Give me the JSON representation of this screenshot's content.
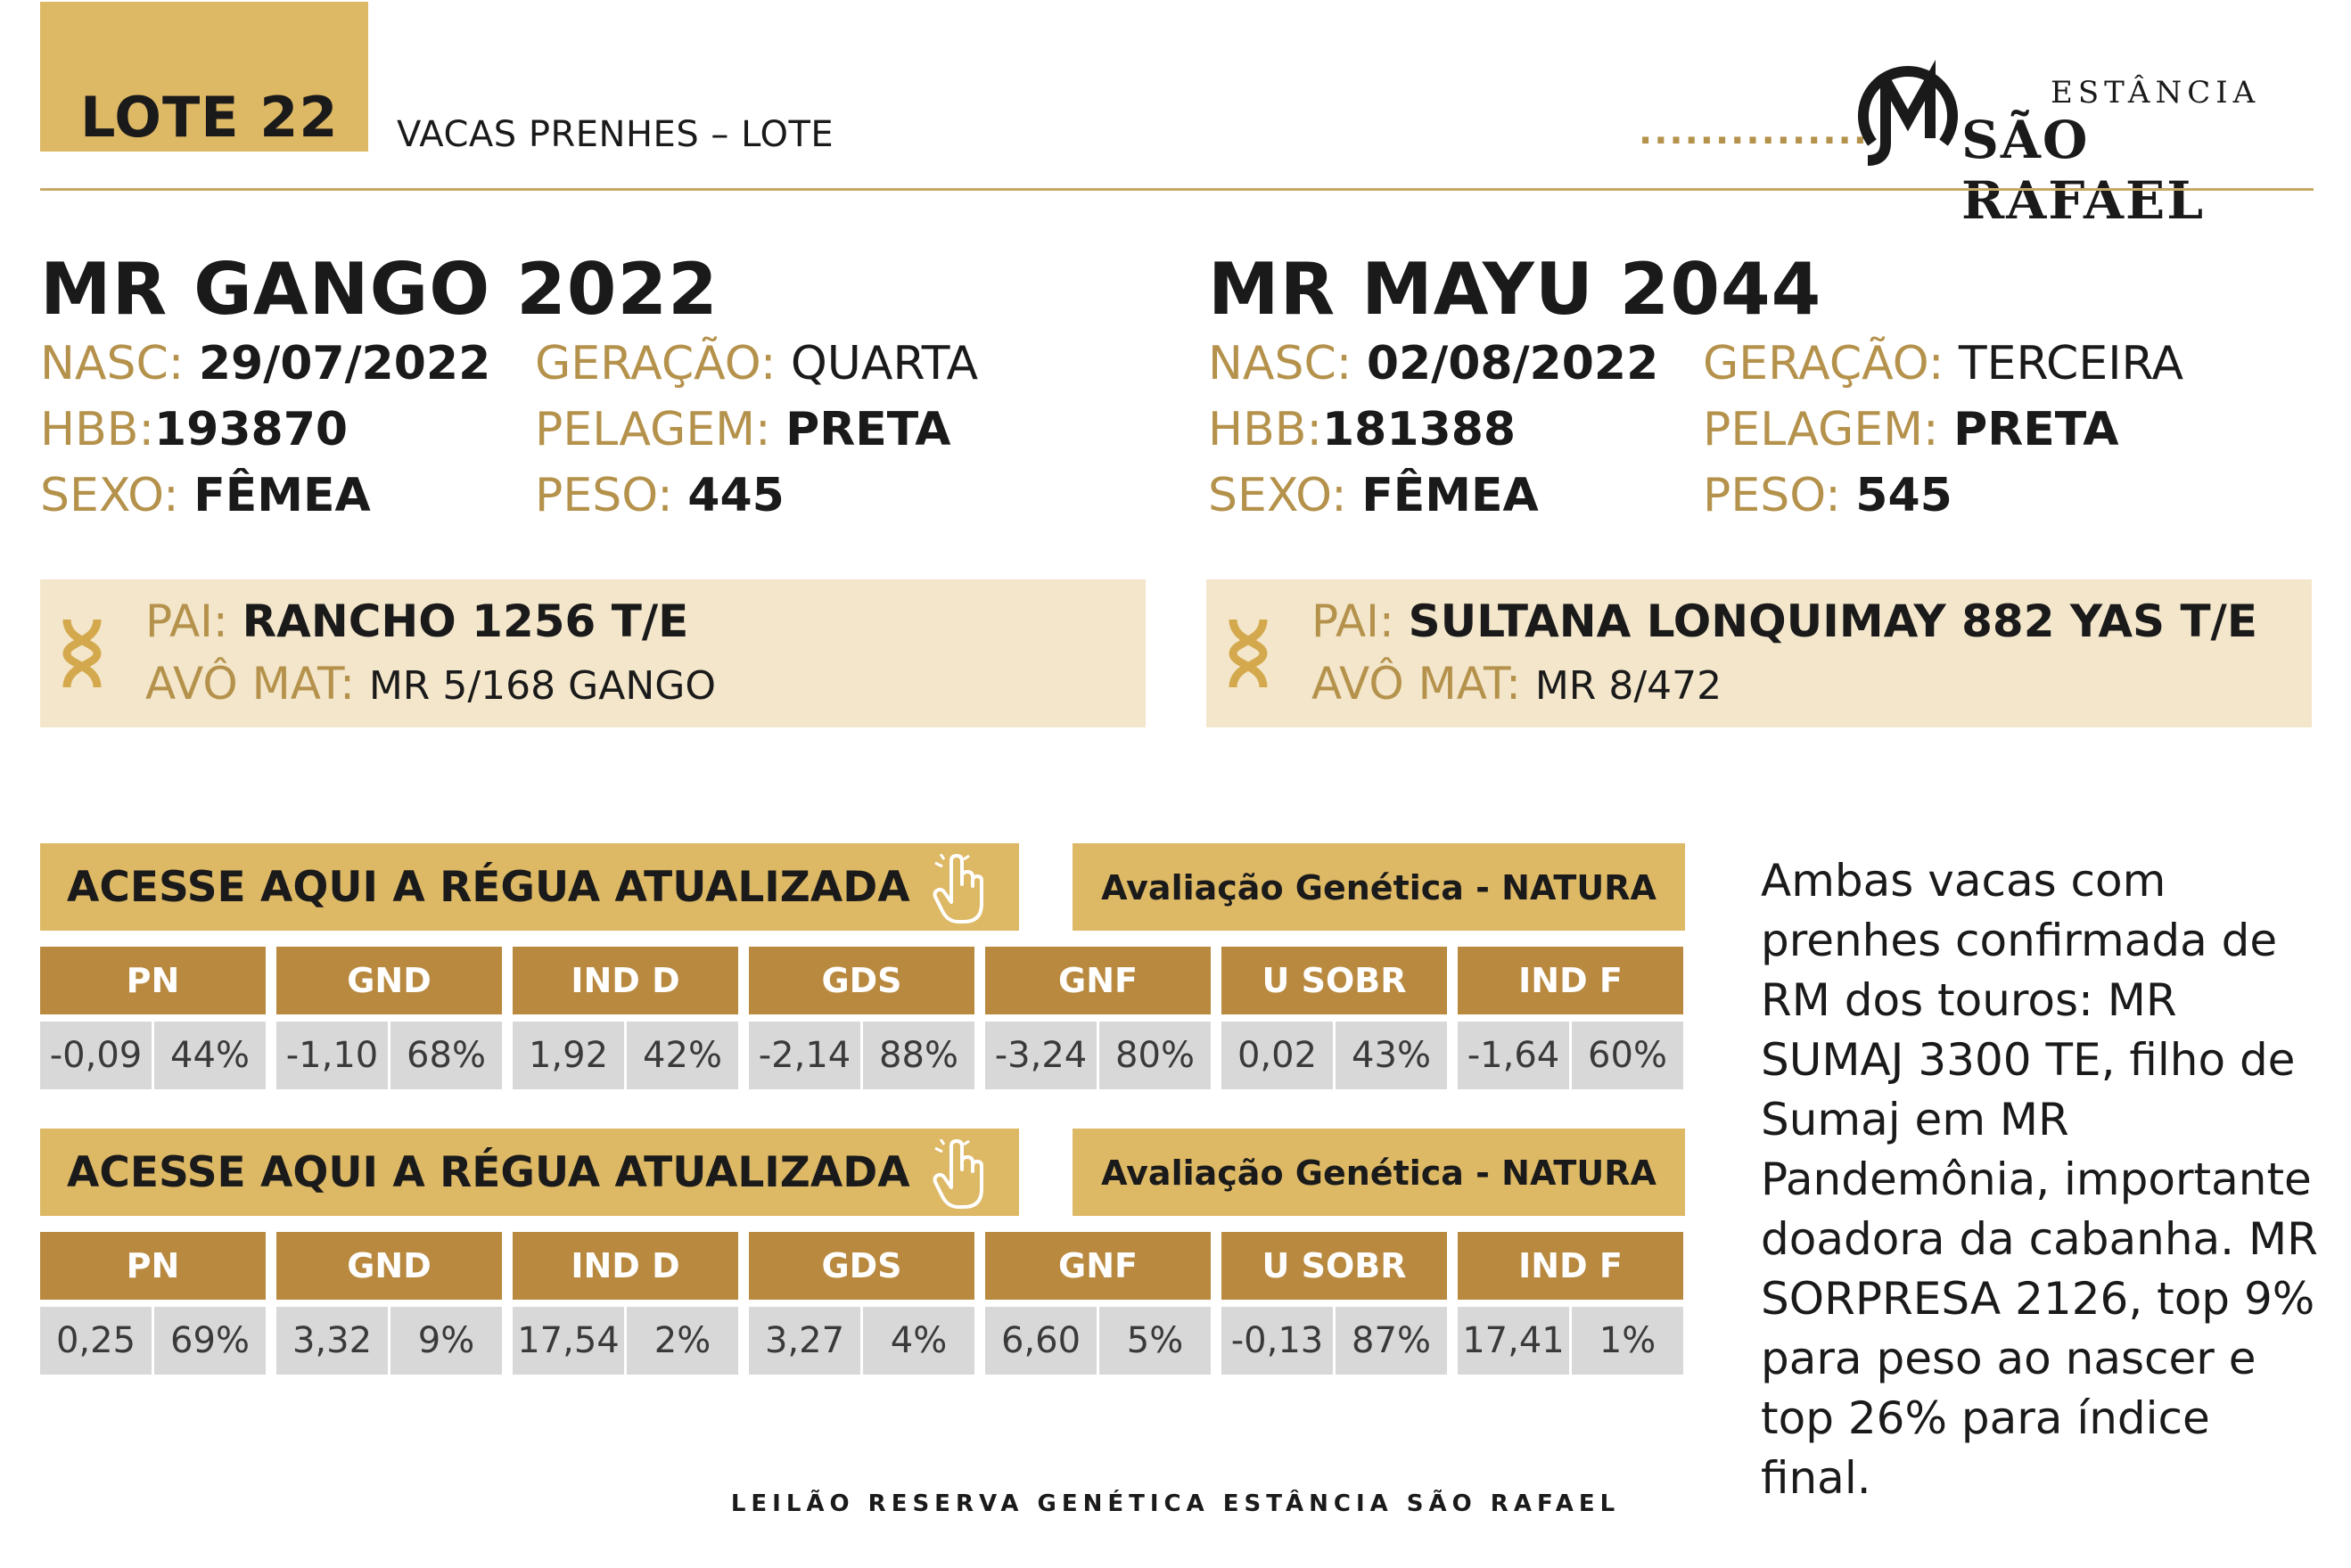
{
  "header": {
    "lote": "LOTE 22",
    "subtitle": "VACAS PRENHES – LOTE",
    "dots": "...............",
    "logo": {
      "estancia": "ESTÂNCIA",
      "name": "SÃO RAFAEL",
      "monogram": "monogram-logo"
    }
  },
  "animals": [
    {
      "name": "MR GANGO 2022",
      "nasc_label": "NASC:",
      "nasc": "29/07/2022",
      "hbb_label": "HBB:",
      "hbb": "193870",
      "sexo_label": "SEXO:",
      "sexo": "FÊMEA",
      "geracao_label": "GERAÇÃO:",
      "geracao": "QUARTA",
      "pelagem_label": "PELAGEM:",
      "pelagem": "PRETA",
      "peso_label": "PESO:",
      "peso": "445",
      "pai_label": "PAI:",
      "pai": "RANCHO 1256 T/E",
      "avo_label": "AVÔ MAT:",
      "avo": "MR 5/168 GANGO"
    },
    {
      "name": "MR MAYU 2044",
      "nasc_label": "NASC:",
      "nasc": "02/08/2022",
      "hbb_label": "HBB:",
      "hbb": "181388",
      "sexo_label": "SEXO:",
      "sexo": "FÊMEA",
      "geracao_label": "GERAÇÃO:",
      "geracao": "TERCEIRA",
      "pelagem_label": "PELAGEM:",
      "pelagem": "PRETA",
      "peso_label": "PESO:",
      "peso": "545",
      "pai_label": "PAI:",
      "pai": "SULTANA LONQUIMAY 882 YAS T/E",
      "avo_label": "AVÔ MAT:",
      "avo": "MR 8/472"
    }
  ],
  "tables": [
    {
      "link_label": "ACESSE AQUI A RÉGUA ATUALIZADA",
      "eval_label": "Avaliação Genética - NATURA",
      "headers": [
        "PN",
        "GND",
        "IND D",
        "GDS",
        "GNF",
        "U SOBR",
        "IND F"
      ],
      "values": [
        [
          "-0,09",
          "44%"
        ],
        [
          "-1,10",
          "68%"
        ],
        [
          "1,92",
          "42%"
        ],
        [
          "-2,14",
          "88%"
        ],
        [
          "-3,24",
          "80%"
        ],
        [
          "0,02",
          "43%"
        ],
        [
          "-1,64",
          "60%"
        ]
      ]
    },
    {
      "link_label": "ACESSE AQUI A RÉGUA ATUALIZADA",
      "eval_label": "Avaliação Genética - NATURA",
      "headers": [
        "PN",
        "GND",
        "IND D",
        "GDS",
        "GNF",
        "U SOBR",
        "IND F"
      ],
      "values": [
        [
          "0,25",
          "69%"
        ],
        [
          "3,32",
          "9%"
        ],
        [
          "17,54",
          "2%"
        ],
        [
          "3,27",
          "4%"
        ],
        [
          "6,60",
          "5%"
        ],
        [
          "-0,13",
          "87%"
        ],
        [
          "17,41",
          "1%"
        ]
      ]
    }
  ],
  "description": "Ambas vacas com prenhes confirmada de RM dos touros: MR SUMAJ 3300 TE, filho de Sumaj em MR Pandemônia, importante doadora da cabanha. MR SORPRESA 2126, top 9% para peso ao nascer e top 26% para índice final.",
  "footer": "LEILÃO RESERVA GENÉTICA  ESTÂNCIA  SÃO  RAFAEL",
  "colors": {
    "gold": "#ddb865",
    "gold_text": "#b5924c",
    "bronze": "#b8893f",
    "cream": "#f3e6cb",
    "gray": "#d8d8d8"
  },
  "icons": {
    "pedigree": "dna-icon",
    "link": "hand-pointer-icon"
  }
}
